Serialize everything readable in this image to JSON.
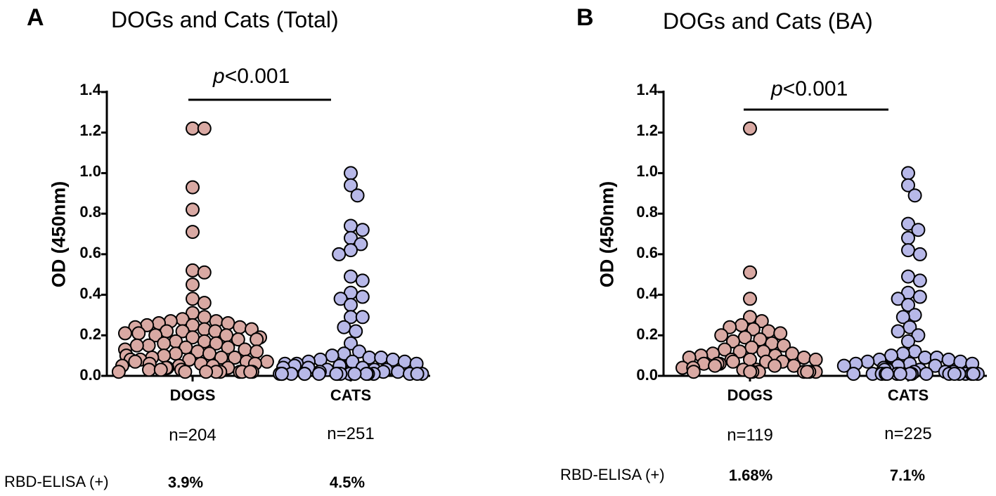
{
  "chart_data": [
    {
      "type": "scatter",
      "panel": "A",
      "title": "DOGs and Cats (Total)",
      "ylabel": "OD (450nm)",
      "xlabel": "",
      "ylim": [
        0,
        1.4
      ],
      "yticks": [
        "0.0",
        "0.2",
        "0.4",
        "0.6",
        "0.8",
        "1.0",
        "1.2",
        "1.4"
      ],
      "significance": {
        "prefix": "p",
        "text": "<0.001"
      },
      "row_label": "RBD-ELISA (+)",
      "groups": [
        {
          "name": "DOGS",
          "n_label": "n=204",
          "positive": "3.9%",
          "color": "#d9a9a3",
          "values": [
            1.22,
            1.22,
            0.93,
            0.82,
            0.71,
            0.51,
            0.52,
            0.45,
            0.38,
            0.36,
            0.31,
            0.29,
            0.28,
            0.27,
            0.27,
            0.26,
            0.26,
            0.25,
            0.25,
            0.24,
            0.24,
            0.23,
            0.23,
            0.22,
            0.22,
            0.22,
            0.21,
            0.21,
            0.2,
            0.2,
            0.19,
            0.19,
            0.18,
            0.18,
            0.17,
            0.17,
            0.16,
            0.16,
            0.15,
            0.15,
            0.14,
            0.14,
            0.13,
            0.13,
            0.12,
            0.12,
            0.11,
            0.11,
            0.1,
            0.1,
            0.09,
            0.09,
            0.09,
            0.08,
            0.08,
            0.08,
            0.07,
            0.07,
            0.07,
            0.06,
            0.06,
            0.06,
            0.05,
            0.05,
            0.05,
            0.04,
            0.04,
            0.04,
            0.03,
            0.03,
            0.03,
            0.02,
            0.02,
            0.02,
            0.02,
            0.02,
            0.02,
            0.02,
            0.02,
            0.02
          ]
        },
        {
          "name": "CATS",
          "n_label": "n=251",
          "positive": "4.5%",
          "color": "#b7b8e8",
          "values": [
            1.0,
            0.94,
            0.89,
            0.74,
            0.72,
            0.68,
            0.65,
            0.62,
            0.6,
            0.49,
            0.47,
            0.41,
            0.39,
            0.38,
            0.35,
            0.29,
            0.29,
            0.24,
            0.22,
            0.16,
            0.12,
            0.11,
            0.1,
            0.09,
            0.09,
            0.08,
            0.08,
            0.07,
            0.07,
            0.07,
            0.06,
            0.06,
            0.06,
            0.05,
            0.05,
            0.05,
            0.04,
            0.04,
            0.04,
            0.03,
            0.03,
            0.03,
            0.02,
            0.02,
            0.02,
            0.01,
            0.01,
            0.01,
            0.01,
            0.01,
            0.01,
            0.01,
            0.01,
            0.01,
            0.01,
            0.01,
            0.01,
            0.01,
            0.01,
            0.01,
            0.01,
            0.01,
            0.01,
            0.01,
            0.01,
            0.01
          ]
        }
      ]
    },
    {
      "type": "scatter",
      "panel": "B",
      "title": "DOGs and Cats (BA)",
      "ylabel": "OD (450nm)",
      "xlabel": "",
      "ylim": [
        0,
        1.4
      ],
      "yticks": [
        "0.0",
        "0.2",
        "0.4",
        "0.6",
        "0.8",
        "1.0",
        "1.2",
        "1.4"
      ],
      "significance": {
        "prefix": "p",
        "text": "<0.001"
      },
      "row_label": "RBD-ELISA (+)",
      "groups": [
        {
          "name": "DOGS",
          "n_label": "n=119",
          "positive": "1.68%",
          "color": "#d9a9a3",
          "values": [
            1.22,
            0.51,
            0.38,
            0.29,
            0.27,
            0.25,
            0.24,
            0.23,
            0.22,
            0.21,
            0.2,
            0.19,
            0.18,
            0.17,
            0.16,
            0.15,
            0.14,
            0.13,
            0.12,
            0.12,
            0.11,
            0.11,
            0.1,
            0.1,
            0.09,
            0.09,
            0.08,
            0.08,
            0.08,
            0.07,
            0.07,
            0.07,
            0.06,
            0.06,
            0.06,
            0.05,
            0.05,
            0.05,
            0.04,
            0.04,
            0.03,
            0.03,
            0.02,
            0.02,
            0.02,
            0.02,
            0.02,
            0.02,
            0.02,
            0.02
          ]
        },
        {
          "name": "CATS",
          "n_label": "n=225",
          "positive": "7.1%",
          "color": "#b7b8e8",
          "values": [
            1.0,
            0.94,
            0.89,
            0.75,
            0.72,
            0.68,
            0.62,
            0.6,
            0.49,
            0.47,
            0.41,
            0.39,
            0.38,
            0.35,
            0.3,
            0.29,
            0.24,
            0.22,
            0.2,
            0.17,
            0.12,
            0.11,
            0.1,
            0.09,
            0.09,
            0.08,
            0.08,
            0.07,
            0.07,
            0.06,
            0.06,
            0.06,
            0.05,
            0.05,
            0.05,
            0.04,
            0.04,
            0.03,
            0.03,
            0.03,
            0.02,
            0.02,
            0.02,
            0.01,
            0.01,
            0.01,
            0.01,
            0.01,
            0.01,
            0.01,
            0.01,
            0.01,
            0.01,
            0.01,
            0.01,
            0.01,
            0.01,
            0.01,
            0.01,
            0.01
          ]
        }
      ]
    }
  ]
}
